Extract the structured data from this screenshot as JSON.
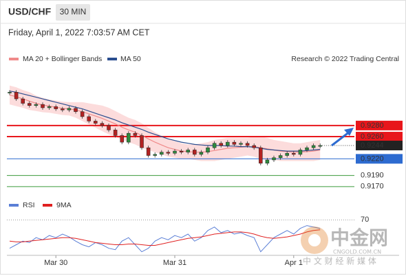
{
  "chart_data": {
    "type": "candlestick",
    "title": "USD/CHF",
    "timeframe": "30 MIN",
    "subtitle": "Friday, April 1, 2022 7:03:57 AM CET",
    "source": "Research © 2022 Trading Central",
    "categories": [
      null,
      null,
      null,
      null,
      null,
      null,
      null,
      "Mar 30",
      null,
      null,
      null,
      null,
      null,
      null,
      null,
      null,
      null,
      null,
      null,
      null,
      null,
      null,
      null,
      null,
      null,
      "Mar 31",
      null,
      null,
      null,
      null,
      null,
      null,
      null,
      null,
      null,
      null,
      null,
      null,
      null,
      null,
      null,
      null,
      null,
      "Apr 1",
      null,
      null,
      null,
      null
    ],
    "ylim": [
      0.915,
      0.938
    ],
    "up_color": "#2e8b3e",
    "down_color": "#b22222",
    "closes": [
      0.934,
      0.9328,
      0.932,
      0.9316,
      0.9318,
      0.9312,
      0.9314,
      0.931,
      0.9308,
      0.9311,
      0.9305,
      0.9296,
      0.9288,
      0.9284,
      0.928,
      0.9272,
      0.9262,
      0.925,
      0.9266,
      0.9262,
      0.924,
      0.9226,
      0.9228,
      0.9232,
      0.923,
      0.9234,
      0.9232,
      0.9236,
      0.9228,
      0.9232,
      0.924,
      0.9248,
      0.9244,
      0.925,
      0.9246,
      0.9248,
      0.9244,
      0.924,
      0.9212,
      0.9218,
      0.9222,
      0.9226,
      0.923,
      0.9228,
      0.9236,
      0.924,
      0.9244,
      0.9244
    ],
    "overlays": [
      {
        "name": "MA 20 + Bollinger Bands",
        "color": "#f08a8a",
        "band_color": "#fbd3d3",
        "values": [
          0.9335,
          0.9332,
          0.9328,
          0.9324,
          0.932,
          0.9317,
          0.9315,
          0.9313,
          0.9311,
          0.931,
          0.9308,
          0.9305,
          0.9301,
          0.9297,
          0.9293,
          0.9288,
          0.9283,
          0.9277,
          0.9272,
          0.9268,
          0.9262,
          0.9256,
          0.925,
          0.9245,
          0.924,
          0.9237,
          0.9234,
          0.9233,
          0.9232,
          0.9232,
          0.9233,
          0.9235,
          0.9237,
          0.9239,
          0.924,
          0.9241,
          0.9242,
          0.9242,
          0.924,
          0.9238,
          0.9236,
          0.9234,
          0.9233,
          0.9232,
          0.9232,
          0.9233,
          0.9234,
          0.9236
        ],
        "upper": [
          0.9352,
          0.9349,
          0.9344,
          0.934,
          0.9334,
          0.933,
          0.9327,
          0.9325,
          0.9323,
          0.9322,
          0.9322,
          0.9322,
          0.932,
          0.9318,
          0.9316,
          0.9312,
          0.9306,
          0.93,
          0.9294,
          0.929,
          0.9284,
          0.9276,
          0.9268,
          0.9262,
          0.9256,
          0.9252,
          0.9248,
          0.9246,
          0.9246,
          0.9248,
          0.925,
          0.9254,
          0.9256,
          0.9258,
          0.9258,
          0.9258,
          0.9258,
          0.926,
          0.926,
          0.9258,
          0.9254,
          0.9252,
          0.925,
          0.9248,
          0.9248,
          0.925,
          0.9252,
          0.9254
        ],
        "lower": [
          0.9318,
          0.9315,
          0.9312,
          0.9308,
          0.9306,
          0.9304,
          0.9303,
          0.9301,
          0.9299,
          0.9298,
          0.9294,
          0.9288,
          0.9282,
          0.9276,
          0.927,
          0.9264,
          0.926,
          0.9254,
          0.925,
          0.9246,
          0.924,
          0.9236,
          0.9232,
          0.9228,
          0.9224,
          0.9222,
          0.922,
          0.922,
          0.9218,
          0.9216,
          0.9216,
          0.9216,
          0.9218,
          0.922,
          0.9222,
          0.9224,
          0.9226,
          0.9224,
          0.922,
          0.9218,
          0.9218,
          0.9216,
          0.9216,
          0.9216,
          0.9216,
          0.9216,
          0.9216,
          0.9218
        ]
      },
      {
        "name": "MA 50",
        "color": "#2a4d8f",
        "values": [
          0.9342,
          0.934,
          0.9337,
          0.9334,
          0.9331,
          0.9328,
          0.9325,
          0.9322,
          0.9319,
          0.9316,
          0.9313,
          0.931,
          0.9306,
          0.9302,
          0.9298,
          0.9294,
          0.929,
          0.9285,
          0.9281,
          0.9277,
          0.9273,
          0.9268,
          0.9264,
          0.926,
          0.9256,
          0.9253,
          0.925,
          0.9248,
          0.9246,
          0.9245,
          0.9244,
          0.9244,
          0.9244,
          0.9243,
          0.9243,
          0.9242,
          0.9242,
          0.9241,
          0.9239,
          0.9237,
          0.9236,
          0.9235,
          0.9234,
          0.9234,
          0.9234,
          0.9235,
          0.9236,
          0.9237
        ]
      }
    ],
    "levels": [
      {
        "value": 0.928,
        "label": "0.9280",
        "color": "#e8161b",
        "boxed": true
      },
      {
        "value": 0.926,
        "label": "0.9260",
        "color": "#e8161b",
        "boxed": true
      },
      {
        "value": 0.9244,
        "label": "0.9244",
        "color": "#222222",
        "boxed": true
      },
      {
        "value": 0.922,
        "label": "0.9220",
        "color": "#2d6bd0",
        "boxed": true
      },
      {
        "value": 0.919,
        "label": "0.9190",
        "color": "#3a9a3a",
        "boxed": false
      },
      {
        "value": 0.917,
        "label": "0.9170",
        "color": "#3a9a3a",
        "boxed": false
      }
    ],
    "rsi": {
      "ylim": [
        20,
        80
      ],
      "yticks": [
        70
      ],
      "series": [
        {
          "name": "RSI",
          "color": "#5b7fd6",
          "values": [
            30,
            35,
            40,
            38,
            45,
            42,
            48,
            45,
            50,
            46,
            40,
            35,
            32,
            38,
            35,
            30,
            28,
            40,
            45,
            35,
            25,
            30,
            40,
            45,
            42,
            48,
            45,
            50,
            40,
            45,
            55,
            60,
            52,
            55,
            50,
            52,
            48,
            45,
            25,
            35,
            45,
            50,
            55,
            50,
            58,
            62,
            60,
            58
          ]
        },
        {
          "name": "9MA",
          "color": "#e02020",
          "values": [
            40,
            39,
            39,
            40,
            41,
            42,
            43,
            44,
            45,
            45,
            44,
            42,
            40,
            38,
            37,
            36,
            35,
            35,
            36,
            36,
            35,
            34,
            34,
            36,
            38,
            40,
            42,
            44,
            45,
            46,
            48,
            50,
            51,
            52,
            53,
            53,
            52,
            50,
            47,
            45,
            44,
            45,
            46,
            48,
            50,
            53,
            55,
            56
          ]
        }
      ]
    },
    "watermark": {
      "logo": "中金网",
      "site": "CNGOLD.COM.CN",
      "tagline": "中 文 财 经 新 媒 体"
    }
  }
}
